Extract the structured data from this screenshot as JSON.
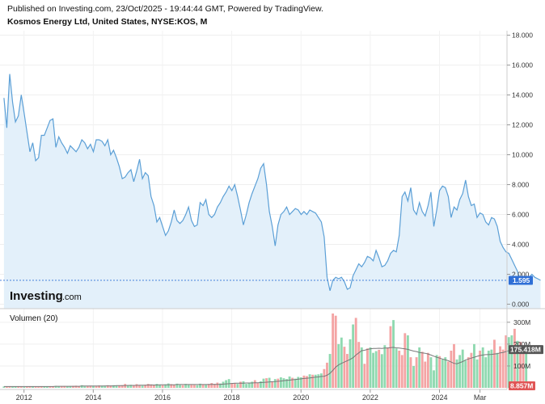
{
  "header": {
    "published": "Published on Investing.com, 23/Oct/2025 - 19:44:44 GMT, Powered by TradingView.",
    "instrument": "Kosmos Energy Ltd, United States, NYSE:KOS, M"
  },
  "logo": {
    "brand": "Investing",
    "suffix": ".com"
  },
  "colors": {
    "price_line": "#5b9fd6",
    "price_fill": "#e3f0fa",
    "last_price_badge": "#2f6fd6",
    "volume_up": "#8fd9b0",
    "volume_down": "#f4a4a4",
    "volume_ma": "#777777",
    "volume_badge_up": "#555555",
    "volume_badge_down": "#e05555"
  },
  "chart_data": [
    {
      "type": "area",
      "yticks": [
        "0.000",
        "2.000",
        "4.000",
        "6.000",
        "8.000",
        "10.000",
        "12.000",
        "14.000",
        "16.000",
        "18.000"
      ],
      "ylim": [
        -0.3,
        18.3
      ],
      "xlim": [
        2011.4,
        2025.95
      ],
      "xticks": [
        {
          "x": 2012,
          "label": "2012"
        },
        {
          "x": 2014,
          "label": "2014"
        },
        {
          "x": 2016,
          "label": "2016"
        },
        {
          "x": 2018,
          "label": "2018"
        },
        {
          "x": 2020,
          "label": "2020"
        },
        {
          "x": 2022,
          "label": "2022"
        },
        {
          "x": 2024,
          "label": "2024"
        },
        {
          "x": 2025.17,
          "label": "Mar"
        }
      ],
      "last_price": 1.595,
      "last_price_label": "1.595",
      "x_start": 2011.42,
      "x_step_months": 1,
      "values": [
        13.8,
        11.8,
        15.4,
        13.5,
        12.2,
        12.6,
        14.0,
        12.8,
        11.5,
        10.2,
        10.8,
        9.6,
        9.8,
        11.3,
        11.3,
        11.8,
        12.3,
        12.4,
        10.5,
        11.2,
        10.8,
        10.5,
        10.1,
        10.6,
        10.4,
        10.2,
        10.5,
        11.0,
        10.8,
        10.4,
        10.7,
        10.2,
        11.0,
        11.0,
        10.9,
        10.6,
        11.0,
        10.0,
        10.3,
        9.8,
        9.2,
        8.4,
        8.5,
        8.8,
        9.0,
        8.2,
        8.9,
        9.7,
        8.4,
        8.8,
        8.6,
        7.2,
        6.6,
        5.5,
        5.8,
        5.2,
        4.6,
        4.9,
        5.5,
        6.3,
        5.6,
        5.4,
        5.6,
        6.0,
        6.5,
        5.6,
        5.2,
        5.3,
        6.8,
        6.6,
        7.0,
        6.0,
        5.8,
        6.0,
        6.5,
        6.8,
        7.2,
        7.5,
        7.9,
        7.6,
        8.0,
        7.2,
        6.3,
        5.3,
        6.0,
        6.8,
        7.4,
        7.9,
        8.4,
        9.1,
        9.4,
        8.0,
        6.2,
        5.2,
        3.9,
        5.3,
        6.0,
        6.2,
        6.5,
        6.0,
        6.2,
        6.4,
        6.3,
        6.0,
        6.2,
        6.0,
        6.3,
        6.2,
        6.1,
        5.8,
        5.5,
        4.5,
        1.8,
        0.9,
        1.6,
        1.8,
        1.7,
        1.8,
        1.5,
        1.0,
        1.1,
        1.9,
        2.3,
        2.7,
        2.5,
        2.8,
        3.2,
        3.1,
        2.9,
        3.6,
        3.1,
        2.5,
        2.6,
        2.9,
        3.4,
        3.6,
        3.5,
        4.6,
        7.2,
        7.5,
        6.9,
        7.8,
        6.3,
        6.0,
        6.8,
        6.2,
        5.9,
        6.6,
        7.5,
        5.2,
        6.3,
        7.6,
        7.9,
        7.8,
        7.2,
        5.8,
        6.5,
        6.3,
        7.0,
        7.4,
        8.3,
        7.2,
        6.6,
        6.7,
        5.8,
        6.1,
        6.0,
        5.5,
        5.3,
        5.8,
        5.7,
        5.2,
        4.2,
        3.8,
        3.5,
        3.4,
        3.0,
        2.6,
        2.2,
        1.6,
        1.5,
        1.7,
        1.8,
        2.0,
        1.8,
        1.7,
        1.6
      ]
    },
    {
      "type": "bar",
      "title": "Volumen (20)",
      "yticks": [
        "100M",
        "200M",
        "300M"
      ],
      "ylim": [
        0,
        340
      ],
      "x_start": 2011.42,
      "x_step_months": 1,
      "current_volume_label": "8.857M",
      "ma_label": "175.418M",
      "values": [
        6,
        5,
        7,
        5,
        6,
        6,
        5,
        4,
        5,
        7,
        6,
        5,
        5,
        6,
        6,
        5,
        7,
        6,
        9,
        6,
        7,
        8,
        7,
        8,
        9,
        10,
        8,
        12,
        7,
        9,
        10,
        8,
        9,
        11,
        10,
        9,
        12,
        11,
        12,
        10,
        11,
        12,
        18,
        11,
        14,
        12,
        17,
        13,
        10,
        14,
        18,
        16,
        14,
        18,
        13,
        12,
        16,
        20,
        17,
        15,
        19,
        13,
        12,
        18,
        15,
        14,
        13,
        12,
        19,
        16,
        14,
        18,
        22,
        18,
        24,
        20,
        28,
        35,
        40,
        22,
        22,
        18,
        28,
        30,
        18,
        22,
        28,
        35,
        24,
        30,
        42,
        44,
        46,
        28,
        40,
        42,
        48,
        44,
        40,
        52,
        46,
        42,
        50,
        48,
        56,
        54,
        62,
        60,
        60,
        62,
        66,
        86,
        115,
        155,
        340,
        330,
        200,
        230,
        188,
        155,
        222,
        290,
        320,
        210,
        185,
        110,
        180,
        185,
        160,
        168,
        174,
        154,
        195,
        185,
        282,
        310,
        180,
        170,
        150,
        250,
        240,
        140,
        100,
        140,
        185,
        165,
        120,
        160,
        140,
        80,
        150,
        145,
        130,
        140,
        120,
        170,
        200,
        130,
        150,
        175,
        125,
        140,
        160,
        200,
        130,
        170,
        185,
        140,
        170,
        175,
        220,
        160,
        190,
        175,
        240,
        232,
        240,
        270,
        215,
        210,
        180,
        195,
        9
      ],
      "directions": "udduuddudduddduudduudduuddduuddudduudduuddduudddudddduuduudduuduudduududddduuuudduduuuudduudududuuuuduuudduduuuddudduudduuddudduuuduudduudddudududdduuuduuddduuuudduuduuuududdduududduddduudduuuudduuduudduudd",
      "ma": [
        6,
        6,
        6,
        6,
        6,
        6,
        6,
        6,
        6,
        6,
        6,
        6,
        6,
        6,
        6,
        6,
        6,
        6,
        7,
        7,
        7,
        7,
        7,
        7,
        7,
        7,
        7,
        8,
        8,
        8,
        8,
        8,
        8,
        8,
        8,
        9,
        9,
        9,
        9,
        10,
        10,
        10,
        10,
        11,
        11,
        11,
        11,
        12,
        12,
        12,
        13,
        13,
        13,
        13,
        14,
        14,
        14,
        14,
        14,
        14,
        15,
        15,
        15,
        15,
        15,
        15,
        15,
        15,
        15,
        15,
        15,
        15,
        16,
        16,
        16,
        16,
        17,
        18,
        19,
        20,
        21,
        21,
        21,
        21,
        22,
        22,
        22,
        23,
        23,
        24,
        25,
        26,
        27,
        28,
        29,
        30,
        31,
        33,
        34,
        35,
        37,
        38,
        40,
        41,
        43,
        44,
        45,
        47,
        49,
        50,
        52,
        53,
        58,
        66,
        80,
        95,
        105,
        112,
        118,
        124,
        130,
        138,
        150,
        160,
        170,
        172,
        176,
        178,
        180,
        180,
        181,
        180,
        182,
        182,
        184,
        185,
        183,
        182,
        180,
        178,
        176,
        172,
        168,
        166,
        162,
        160,
        158,
        155,
        150,
        145,
        140,
        136,
        132,
        128,
        124,
        118,
        112,
        110,
        115,
        120,
        128,
        132,
        136,
        140,
        144,
        148,
        150,
        152,
        152,
        153,
        155,
        156,
        160,
        162,
        166,
        170,
        172,
        175,
        176,
        176,
        176,
        176,
        175
      ]
    }
  ]
}
